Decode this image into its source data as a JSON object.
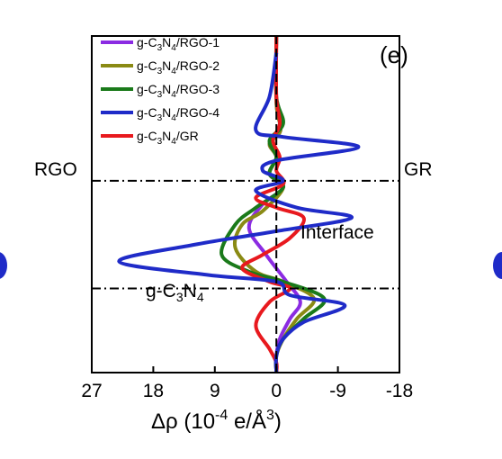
{
  "chart_data": {
    "type": "line",
    "panel_label": "(e)",
    "xlabel_main": "Δρ (10",
    "xlabel_exp": "-4",
    "xlabel_unit": " e/Å",
    "xlabel_unit_exp": "3",
    "xlabel_close": ")",
    "x_axis_reversed": true,
    "xlim": [
      27,
      -18
    ],
    "xticks": [
      27,
      18,
      9,
      0,
      -9,
      -18
    ],
    "ylim": [
      0,
      1
    ],
    "grid": false,
    "legend_placement": "top-left",
    "annotations": {
      "rgo_label": "RGO",
      "gr_label": "GR",
      "interface_label": "Interface",
      "gc3n4_base": "g-C",
      "gc3n4_sub1": "3",
      "gc3n4_mid": "N",
      "gc3n4_sub2": "4"
    },
    "boundaries": [
      0.57,
      0.25
    ],
    "series": [
      {
        "name": "g-C3N4/RGO-1",
        "legend": {
          "a": "g-C",
          "s1": "3",
          "b": "N",
          "s2": "4",
          "c": "/RGO-1"
        },
        "color": "#8b2be2",
        "points": [
          [
            0,
            1
          ],
          [
            0,
            0.8
          ],
          [
            -0.6,
            0.72
          ],
          [
            1,
            0.68
          ],
          [
            0,
            0.64
          ],
          [
            1,
            0.59
          ],
          [
            -1,
            0.55
          ],
          [
            2,
            0.5
          ],
          [
            4,
            0.43
          ],
          [
            1.5,
            0.35
          ],
          [
            -1.5,
            0.27
          ],
          [
            -3.5,
            0.21
          ],
          [
            -2,
            0.16
          ],
          [
            -0.5,
            0.1
          ],
          [
            0,
            0.05
          ],
          [
            0,
            0
          ]
        ]
      },
      {
        "name": "g-C3N4/RGO-2",
        "legend": {
          "a": "g-C",
          "s1": "3",
          "b": "N",
          "s2": "4",
          "c": "/RGO-2"
        },
        "color": "#8a8a14",
        "points": [
          [
            0,
            1
          ],
          [
            0,
            0.8
          ],
          [
            -0.6,
            0.72
          ],
          [
            1,
            0.68
          ],
          [
            0,
            0.64
          ],
          [
            1,
            0.59
          ],
          [
            -1,
            0.55
          ],
          [
            2,
            0.48
          ],
          [
            5,
            0.44
          ],
          [
            6,
            0.37
          ],
          [
            3,
            0.3
          ],
          [
            -1,
            0.27
          ],
          [
            -5.5,
            0.22
          ],
          [
            -3,
            0.16
          ],
          [
            -1,
            0.1
          ],
          [
            0,
            0.05
          ],
          [
            0,
            0
          ]
        ]
      },
      {
        "name": "g-C3N4/RGO-3",
        "legend": {
          "a": "g-C",
          "s1": "3",
          "b": "N",
          "s2": "4",
          "c": "/RGO-3"
        },
        "color": "#1a7a1a",
        "points": [
          [
            0,
            1
          ],
          [
            0,
            0.82
          ],
          [
            -1,
            0.74
          ],
          [
            1,
            0.69
          ],
          [
            0,
            0.64
          ],
          [
            1,
            0.59
          ],
          [
            -1,
            0.55
          ],
          [
            3,
            0.49
          ],
          [
            6,
            0.44
          ],
          [
            8,
            0.35
          ],
          [
            4,
            0.3
          ],
          [
            -1,
            0.27
          ],
          [
            -7,
            0.22
          ],
          [
            -4,
            0.16
          ],
          [
            -1,
            0.1
          ],
          [
            0,
            0.05
          ],
          [
            0,
            0
          ]
        ]
      },
      {
        "name": "g-C3N4/RGO-4",
        "legend": {
          "a": "g-C",
          "s1": "3",
          "b": "N",
          "s2": "4",
          "c": "/RGO-4"
        },
        "color": "#1f2bc8",
        "points": [
          [
            0,
            0.95
          ],
          [
            1,
            0.82
          ],
          [
            3,
            0.72
          ],
          [
            -1,
            0.7
          ],
          [
            -12,
            0.67
          ],
          [
            0,
            0.63
          ],
          [
            2,
            0.6
          ],
          [
            -1,
            0.57
          ],
          [
            3,
            0.54
          ],
          [
            -3,
            0.49
          ],
          [
            -11,
            0.46
          ],
          [
            0,
            0.42
          ],
          [
            12,
            0.38
          ],
          [
            23,
            0.33
          ],
          [
            10,
            0.29
          ],
          [
            0,
            0.27
          ],
          [
            -2,
            0.23
          ],
          [
            -10,
            0.2
          ],
          [
            -4,
            0.15
          ],
          [
            -1,
            0.1
          ],
          [
            0,
            0.05
          ],
          [
            0,
            0
          ]
        ]
      },
      {
        "name": "g-C3N4/GR",
        "legend": {
          "a": "g-C",
          "s1": "3",
          "b": "N",
          "s2": "4",
          "c": "/GR"
        },
        "color": "#e8191e",
        "points": [
          [
            0,
            1
          ],
          [
            0,
            0.82
          ],
          [
            -0.5,
            0.74
          ],
          [
            0.5,
            0.69
          ],
          [
            -0.5,
            0.64
          ],
          [
            0,
            0.6
          ],
          [
            -1,
            0.56
          ],
          [
            3,
            0.52
          ],
          [
            0,
            0.49
          ],
          [
            -4,
            0.46
          ],
          [
            -2,
            0.4
          ],
          [
            2,
            0.35
          ],
          [
            5,
            0.31
          ],
          [
            1,
            0.27
          ],
          [
            -2,
            0.25
          ],
          [
            1,
            0.21
          ],
          [
            3,
            0.14
          ],
          [
            1,
            0.07
          ],
          [
            0,
            0.03
          ],
          [
            0,
            0
          ]
        ]
      }
    ]
  }
}
